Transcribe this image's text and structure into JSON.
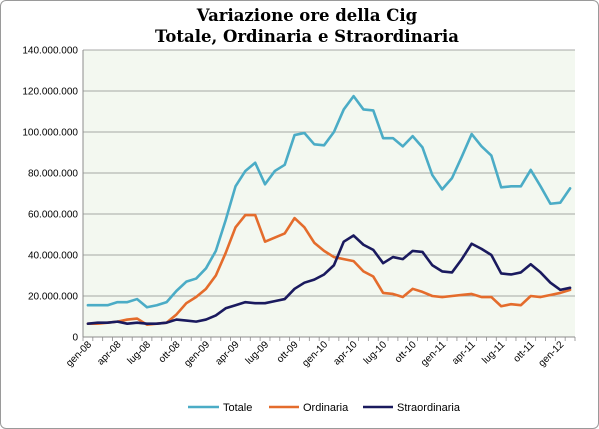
{
  "chart_data": {
    "type": "line",
    "title": "Variazione ore della Cig",
    "subtitle": "Totale, Ordinaria e Straordinaria",
    "xlabel": "",
    "ylabel": "",
    "ylim": [
      0,
      140000000
    ],
    "y_ticks": [
      "0",
      "20.000.000",
      "40.000.000",
      "60.000.000",
      "80.000.000",
      "100.000.000",
      "120.000.000",
      "140.000.000"
    ],
    "grid": true,
    "legend_position": "bottom",
    "x": [
      "gen-08",
      "feb-08",
      "mar-08",
      "apr-08",
      "mag-08",
      "giu-08",
      "lug-08",
      "ago-08",
      "set-08",
      "ott-08",
      "nov-08",
      "dic-08",
      "gen-09",
      "feb-09",
      "mar-09",
      "apr-09",
      "mag-09",
      "giu-09",
      "lug-09",
      "ago-09",
      "set-09",
      "ott-09",
      "nov-09",
      "dic-09",
      "gen-10",
      "feb-10",
      "mar-10",
      "apr-10",
      "mag-10",
      "giu-10",
      "lug-10",
      "ago-10",
      "set-10",
      "ott-10",
      "nov-10",
      "dic-10",
      "gen-11",
      "feb-11",
      "mar-11",
      "apr-11",
      "mag-11",
      "giu-11",
      "lug-11",
      "ago-11",
      "set-11",
      "ott-11",
      "nov-11",
      "dic-11",
      "gen-12",
      "feb-12"
    ],
    "x_tick_labels": [
      "gen-08",
      "apr-08",
      "lug-08",
      "ott-08",
      "gen-09",
      "apr-09",
      "lug-09",
      "ott-09",
      "gen-10",
      "apr-10",
      "lug-10",
      "ott-10",
      "gen-11",
      "apr-11",
      "lug-11",
      "ott-11",
      "gen-12"
    ],
    "series": [
      {
        "name": "Totale",
        "color": "#4bacc6",
        "values": [
          15500000,
          15500000,
          15500000,
          17000000,
          17000000,
          18500000,
          14500000,
          15500000,
          17000000,
          22500000,
          27000000,
          28500000,
          33500000,
          42000000,
          57000000,
          73500000,
          81000000,
          85000000,
          74500000,
          81000000,
          84000000,
          98500000,
          99500000,
          94000000,
          93500000,
          100000000,
          111000000,
          117500000,
          111000000,
          110500000,
          97000000,
          97000000,
          93000000,
          98000000,
          92500000,
          79000000,
          72000000,
          77500000,
          88000000,
          99000000,
          93000000,
          88500000,
          73000000,
          73500000,
          73500000,
          81500000,
          73500000,
          65000000,
          65500000,
          72500000
        ]
      },
      {
        "name": "Ordinaria",
        "color": "#e46c2c",
        "values": [
          6500000,
          6500000,
          7000000,
          7500000,
          8500000,
          9000000,
          6000000,
          6500000,
          7000000,
          11000000,
          16500000,
          19500000,
          23500000,
          30000000,
          41000000,
          53500000,
          59500000,
          59500000,
          46500000,
          48500000,
          50500000,
          58000000,
          53500000,
          46000000,
          42000000,
          39000000,
          38000000,
          37000000,
          32000000,
          29500000,
          21500000,
          21000000,
          19500000,
          23500000,
          22000000,
          20000000,
          19500000,
          20000000,
          20500000,
          21000000,
          19500000,
          19500000,
          15000000,
          16000000,
          15500000,
          20000000,
          19500000,
          20500000,
          21500000,
          23000000
        ]
      },
      {
        "name": "Straordinaria",
        "color": "#1a1a5e",
        "values": [
          6500000,
          7000000,
          7000000,
          7500000,
          6500000,
          7000000,
          6500000,
          6500000,
          7000000,
          8500000,
          8000000,
          7500000,
          8500000,
          10500000,
          14000000,
          15500000,
          17000000,
          16500000,
          16500000,
          17500000,
          18500000,
          23500000,
          26500000,
          28000000,
          30500000,
          35000000,
          46500000,
          49500000,
          45000000,
          42500000,
          36000000,
          39000000,
          38000000,
          42000000,
          41500000,
          35000000,
          32000000,
          31500000,
          38000000,
          45500000,
          43000000,
          40000000,
          31000000,
          30500000,
          31500000,
          35500000,
          31500000,
          26500000,
          23000000,
          24000000
        ]
      }
    ]
  }
}
